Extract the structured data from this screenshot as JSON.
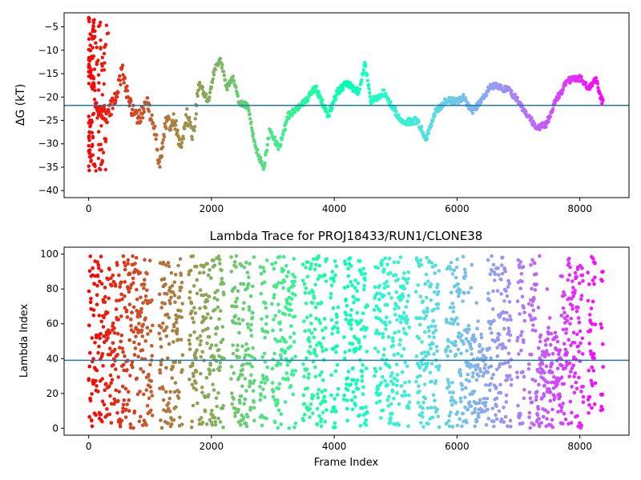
{
  "chart_data": [
    {
      "type": "scatter",
      "title": "",
      "xlabel": "",
      "ylabel": "ΔG (kT)",
      "xlim": [
        -400,
        8800
      ],
      "ylim": [
        -41.5,
        -2
      ],
      "xticks": [
        0,
        2000,
        4000,
        6000,
        8000
      ],
      "yticks": [
        -40,
        -35,
        -30,
        -25,
        -20,
        -15,
        -10,
        -5
      ],
      "hline": -21.8,
      "hline_color": "#1f77b4",
      "colormap": "rainbow (red at first frame → violet at last frame)",
      "grid": false,
      "legend": "none",
      "x_max": 8380,
      "trace_keypoints": [
        [
          0,
          -14
        ],
        [
          150,
          -22
        ],
        [
          300,
          -24
        ],
        [
          450,
          -20
        ],
        [
          550,
          -14
        ],
        [
          650,
          -21
        ],
        [
          800,
          -25
        ],
        [
          950,
          -21
        ],
        [
          1100,
          -28
        ],
        [
          1150,
          -35
        ],
        [
          1250,
          -26
        ],
        [
          1400,
          -25
        ],
        [
          1500,
          -31
        ],
        [
          1600,
          -24
        ],
        [
          1700,
          -28
        ],
        [
          1800,
          -17
        ],
        [
          1950,
          -21
        ],
        [
          2050,
          -14
        ],
        [
          2150,
          -12
        ],
        [
          2250,
          -18
        ],
        [
          2350,
          -16
        ],
        [
          2450,
          -21
        ],
        [
          2600,
          -22
        ],
        [
          2700,
          -30
        ],
        [
          2850,
          -35.5
        ],
        [
          2950,
          -27
        ],
        [
          3100,
          -31
        ],
        [
          3250,
          -24
        ],
        [
          3450,
          -22
        ],
        [
          3700,
          -18
        ],
        [
          3900,
          -24
        ],
        [
          4050,
          -19
        ],
        [
          4200,
          -17
        ],
        [
          4400,
          -19
        ],
        [
          4500,
          -13
        ],
        [
          4600,
          -21
        ],
        [
          4800,
          -19
        ],
        [
          4950,
          -22
        ],
        [
          5100,
          -25.5
        ],
        [
          5350,
          -25
        ],
        [
          5500,
          -29
        ],
        [
          5650,
          -23
        ],
        [
          5850,
          -20.5
        ],
        [
          6000,
          -21
        ],
        [
          6100,
          -20
        ],
        [
          6250,
          -23
        ],
        [
          6400,
          -21
        ],
        [
          6550,
          -17.5
        ],
        [
          6700,
          -18
        ],
        [
          6850,
          -18.5
        ],
        [
          7000,
          -21
        ],
        [
          7150,
          -24
        ],
        [
          7300,
          -26.5
        ],
        [
          7450,
          -26
        ],
        [
          7600,
          -21
        ],
        [
          7800,
          -16.5
        ],
        [
          8000,
          -16
        ],
        [
          8150,
          -18
        ],
        [
          8250,
          -16
        ],
        [
          8380,
          -21.5
        ]
      ],
      "early_scatter_range": [
        -36,
        -3
      ]
    },
    {
      "type": "scatter",
      "title": "Lambda Trace for PROJ18433/RUN1/CLONE38",
      "xlabel": "Frame Index",
      "ylabel": "Lambda Index",
      "xlim": [
        -400,
        8800
      ],
      "ylim": [
        -4,
        104
      ],
      "xticks": [
        0,
        2000,
        4000,
        6000,
        8000
      ],
      "yticks": [
        0,
        20,
        40,
        60,
        80,
        100
      ],
      "hline": 39,
      "hline_color": "#1f77b4",
      "colormap": "rainbow (red at first frame → violet at last frame)",
      "grid": false,
      "legend": "none",
      "x_max": 8380,
      "value_range": [
        0,
        99
      ],
      "low_band_segments": [
        [
          6200,
          6500
        ],
        [
          7300,
          7700
        ]
      ]
    }
  ]
}
